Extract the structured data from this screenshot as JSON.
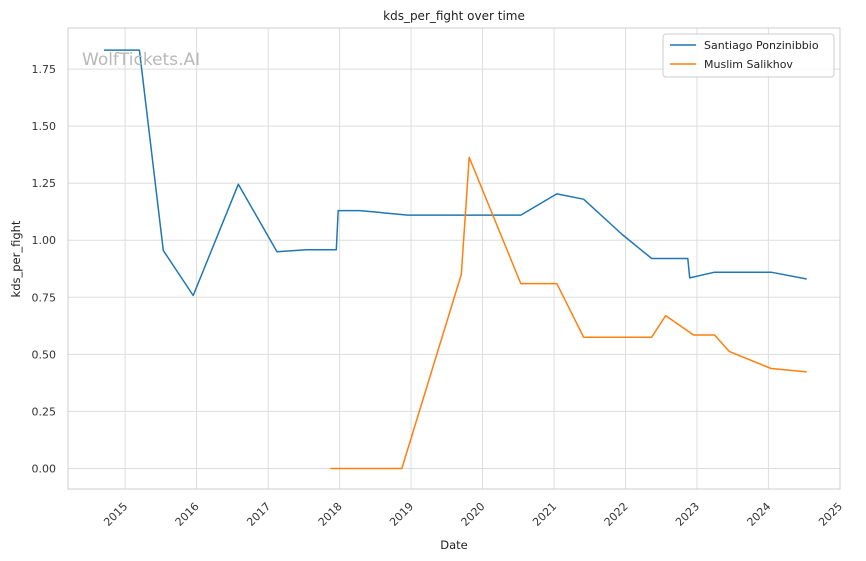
{
  "chart_data": {
    "type": "line",
    "title": "kds_per_fight over time",
    "xlabel": "Date",
    "ylabel": "kds_per_fight",
    "watermark": "WolfTickets.AI",
    "xlim": [
      "2014-03-15",
      "2025-01-01"
    ],
    "ylim": [
      -0.09,
      1.93
    ],
    "x_ticks": [
      "2015",
      "2016",
      "2017",
      "2018",
      "2019",
      "2020",
      "2021",
      "2022",
      "2023",
      "2024",
      "2025"
    ],
    "y_ticks": [
      "0.00",
      "0.25",
      "0.50",
      "0.75",
      "1.00",
      "1.25",
      "1.50",
      "1.75"
    ],
    "grid": true,
    "legend_position": "top-right",
    "series": [
      {
        "name": "Santiago Ponzinibbio",
        "color": "#1f77b4",
        "points": [
          [
            "2014-09-15",
            1.833
          ],
          [
            "2015-03-15",
            1.833
          ],
          [
            "2015-07-15",
            0.955
          ],
          [
            "2015-12-15",
            0.758
          ],
          [
            "2016-08-01",
            1.245
          ],
          [
            "2017-02-15",
            0.95
          ],
          [
            "2017-07-15",
            0.958
          ],
          [
            "2017-12-15",
            0.958
          ],
          [
            "2017-12-25",
            1.13
          ],
          [
            "2018-04-15",
            1.13
          ],
          [
            "2018-12-15",
            1.11
          ],
          [
            "2020-07-15",
            1.11
          ],
          [
            "2021-01-15",
            1.203
          ],
          [
            "2021-06-01",
            1.18
          ],
          [
            "2021-12-15",
            1.025
          ],
          [
            "2022-05-15",
            0.92
          ],
          [
            "2022-11-15",
            0.92
          ],
          [
            "2022-11-25",
            0.835
          ],
          [
            "2023-04-01",
            0.86
          ],
          [
            "2024-01-15",
            0.86
          ],
          [
            "2024-07-15",
            0.83
          ]
        ]
      },
      {
        "name": "Muslim Salikhov",
        "color": "#ff7f0e",
        "points": [
          [
            "2017-11-15",
            0.0
          ],
          [
            "2018-11-15",
            0.0
          ],
          [
            "2019-09-15",
            0.85
          ],
          [
            "2019-10-25",
            1.363
          ],
          [
            "2020-07-15",
            0.81
          ],
          [
            "2021-01-15",
            0.81
          ],
          [
            "2021-06-01",
            0.575
          ],
          [
            "2022-05-15",
            0.575
          ],
          [
            "2022-07-25",
            0.67
          ],
          [
            "2022-12-15",
            0.585
          ],
          [
            "2023-04-01",
            0.585
          ],
          [
            "2023-06-15",
            0.513
          ],
          [
            "2024-01-15",
            0.438
          ],
          [
            "2024-07-15",
            0.423
          ]
        ]
      }
    ]
  }
}
